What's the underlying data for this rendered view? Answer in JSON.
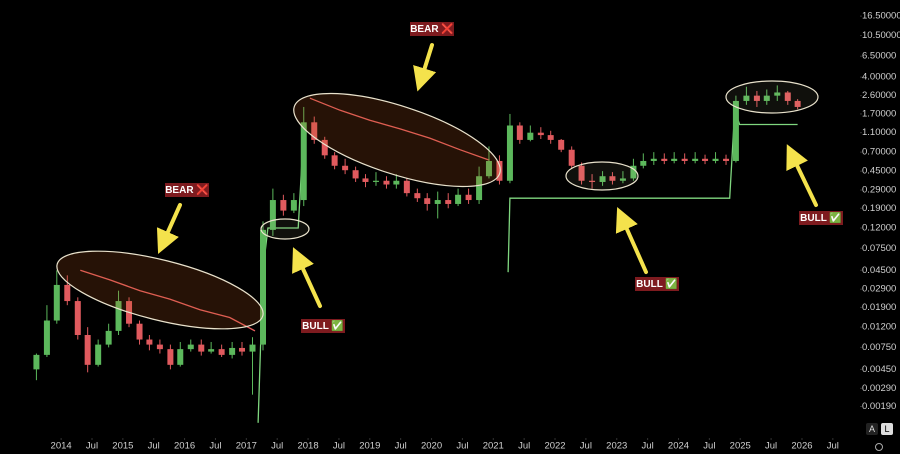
{
  "chart_data": {
    "type": "candlestick",
    "log_scale": true,
    "up_color": "#5cb85c",
    "down_color": "#e05a5e",
    "xlim": [
      2013.01,
      2026.94
    ],
    "ylim": [
      0.0011,
      24
    ],
    "xticks": [
      2014,
      {
        "value": 2014.5,
        "label": "Jul"
      },
      2015,
      {
        "value": 2015.5,
        "label": "Jul"
      },
      2016,
      {
        "value": 2016.5,
        "label": "Jul"
      },
      2017,
      {
        "value": 2017.5,
        "label": "Jul"
      },
      2018,
      {
        "value": 2018.5,
        "label": "Jul"
      },
      2019,
      {
        "value": 2019.5,
        "label": "Jul"
      },
      2020,
      {
        "value": 2020.5,
        "label": "Jul"
      },
      2021,
      {
        "value": 2021.5,
        "label": "Jul"
      },
      2022,
      {
        "value": 2022.5,
        "label": "Jul"
      },
      2023,
      {
        "value": 2023.5,
        "label": "Jul"
      },
      2024,
      {
        "value": 2024.5,
        "label": "Jul"
      },
      2025,
      {
        "value": 2025.5,
        "label": "Jul"
      },
      2026,
      {
        "value": 2026.5,
        "label": "Jul"
      }
    ],
    "yticks": [
      {
        "value": 16.5,
        "label": "16.50000"
      },
      {
        "value": 10.5,
        "label": "10.50000"
      },
      {
        "value": 6.5,
        "label": "6.50000"
      },
      {
        "value": 4,
        "label": "4.00000"
      },
      {
        "value": 2.6,
        "label": "2.60000"
      },
      {
        "value": 1.7,
        "label": "1.70000"
      },
      {
        "value": 1.1,
        "label": "1.10000"
      },
      {
        "value": 0.7,
        "label": "0.70000"
      },
      {
        "value": 0.45,
        "label": "0.45000"
      },
      {
        "value": 0.29,
        "label": "0.29000"
      },
      {
        "value": 0.19,
        "label": "0.19000"
      },
      {
        "value": 0.12,
        "label": "0.12000"
      },
      {
        "value": 0.075,
        "label": "0.07500"
      },
      {
        "value": 0.045,
        "label": "0.04500"
      },
      {
        "value": 0.029,
        "label": "0.02900"
      },
      {
        "value": 0.019,
        "label": "0.01900"
      },
      {
        "value": 0.012,
        "label": "0.01200"
      },
      {
        "value": 0.0075,
        "label": "0.00750"
      },
      {
        "value": 0.0045,
        "label": "0.00450"
      },
      {
        "value": 0.0029,
        "label": "0.00290"
      },
      {
        "value": 0.0019,
        "label": "0.00190"
      }
    ],
    "x": [
      2013.6,
      2013.77,
      2013.93,
      2014.1,
      2014.27,
      2014.43,
      2014.6,
      2014.77,
      2014.93,
      2015.1,
      2015.27,
      2015.43,
      2015.6,
      2015.77,
      2015.93,
      2016.1,
      2016.27,
      2016.43,
      2016.6,
      2016.77,
      2016.93,
      2017.1,
      2017.27,
      2017.43,
      2017.6,
      2017.77,
      2017.93,
      2018.1,
      2018.27,
      2018.43,
      2018.6,
      2018.77,
      2018.93,
      2019.1,
      2019.27,
      2019.43,
      2019.6,
      2019.77,
      2019.93,
      2020.1,
      2020.27,
      2020.43,
      2020.6,
      2020.77,
      2020.93,
      2021.1,
      2021.27,
      2021.43,
      2021.6,
      2021.77,
      2021.93,
      2022.1,
      2022.27,
      2022.43,
      2022.6,
      2022.77,
      2022.93,
      2023.1,
      2023.27,
      2023.43,
      2023.6,
      2023.77,
      2023.93,
      2024.1,
      2024.27,
      2024.43,
      2024.6,
      2024.77,
      2024.93,
      2025.1,
      2025.27,
      2025.43,
      2025.6,
      2025.77,
      2025.93
    ],
    "open": [
      0.0045,
      0.0063,
      0.014,
      0.032,
      0.022,
      0.01,
      0.005,
      0.008,
      0.011,
      0.022,
      0.013,
      0.009,
      0.008,
      0.0072,
      0.005,
      0.0072,
      0.008,
      0.0068,
      0.0072,
      0.0063,
      0.0074,
      0.0068,
      0.008,
      0.115,
      0.23,
      0.18,
      0.23,
      1.4,
      0.93,
      0.65,
      0.51,
      0.46,
      0.38,
      0.35,
      0.36,
      0.33,
      0.36,
      0.27,
      0.24,
      0.21,
      0.23,
      0.21,
      0.26,
      0.23,
      0.4,
      0.57,
      0.36,
      1.3,
      0.93,
      1.1,
      1.04,
      0.93,
      0.74,
      0.51,
      0.36,
      0.35,
      0.4,
      0.36,
      0.38,
      0.51,
      0.57,
      0.6,
      0.57,
      0.6,
      0.57,
      0.6,
      0.57,
      0.6,
      0.57,
      2.3,
      2.6,
      2.3,
      2.6,
      2.8,
      2.3
    ],
    "high": [
      0.0065,
      0.02,
      0.045,
      0.04,
      0.024,
      0.012,
      0.009,
      0.013,
      0.028,
      0.024,
      0.014,
      0.01,
      0.009,
      0.008,
      0.0085,
      0.009,
      0.009,
      0.0085,
      0.008,
      0.0085,
      0.0085,
      0.0095,
      0.14,
      0.3,
      0.26,
      0.27,
      2.0,
      1.6,
      1.0,
      0.7,
      0.6,
      0.5,
      0.42,
      0.44,
      0.4,
      0.42,
      0.38,
      0.3,
      0.27,
      0.28,
      0.27,
      0.3,
      0.3,
      0.5,
      0.8,
      0.65,
      1.7,
      1.4,
      1.3,
      1.25,
      1.15,
      0.95,
      0.8,
      0.55,
      0.42,
      0.45,
      0.44,
      0.45,
      0.6,
      0.68,
      0.7,
      0.68,
      0.7,
      0.68,
      0.7,
      0.66,
      0.7,
      0.66,
      2.6,
      3.2,
      2.9,
      3.0,
      3.3,
      2.9,
      2.4
    ],
    "low": [
      0.0035,
      0.006,
      0.013,
      0.02,
      0.009,
      0.0042,
      0.0048,
      0.0075,
      0.01,
      0.012,
      0.008,
      0.007,
      0.0065,
      0.0045,
      0.0048,
      0.0068,
      0.0062,
      0.0065,
      0.006,
      0.0058,
      0.0062,
      0.0025,
      0.007,
      0.1,
      0.16,
      0.17,
      0.2,
      0.85,
      0.6,
      0.47,
      0.42,
      0.35,
      0.31,
      0.32,
      0.3,
      0.3,
      0.25,
      0.22,
      0.18,
      0.15,
      0.19,
      0.2,
      0.21,
      0.21,
      0.38,
      0.33,
      0.34,
      0.85,
      0.9,
      0.95,
      0.85,
      0.7,
      0.48,
      0.33,
      0.3,
      0.32,
      0.33,
      0.34,
      0.36,
      0.48,
      0.52,
      0.53,
      0.54,
      0.53,
      0.54,
      0.53,
      0.54,
      0.52,
      0.55,
      2.1,
      2.0,
      2.1,
      2.3,
      2.1,
      1.9
    ],
    "close": [
      0.0063,
      0.014,
      0.032,
      0.022,
      0.01,
      0.005,
      0.008,
      0.011,
      0.022,
      0.013,
      0.009,
      0.008,
      0.0072,
      0.005,
      0.0072,
      0.008,
      0.0068,
      0.0072,
      0.0063,
      0.0074,
      0.0068,
      0.008,
      0.115,
      0.23,
      0.18,
      0.23,
      1.4,
      0.93,
      0.65,
      0.51,
      0.46,
      0.38,
      0.35,
      0.36,
      0.33,
      0.36,
      0.27,
      0.24,
      0.21,
      0.23,
      0.21,
      0.26,
      0.23,
      0.4,
      0.57,
      0.36,
      1.3,
      0.93,
      1.1,
      1.04,
      0.93,
      0.74,
      0.51,
      0.36,
      0.35,
      0.4,
      0.36,
      0.38,
      0.51,
      0.57,
      0.6,
      0.57,
      0.6,
      0.57,
      0.6,
      0.57,
      0.6,
      0.57,
      2.3,
      2.6,
      2.3,
      2.6,
      2.8,
      2.3,
      2.0
    ],
    "lines": [
      {
        "color": "#e8605f",
        "x": [
          2014.31,
          2014.79,
          2015.28,
          2015.76,
          2016.25,
          2016.73,
          2017.14
        ],
        "values": [
          0.045,
          0.036,
          0.028,
          0.023,
          0.018,
          0.015,
          0.011
        ]
      },
      {
        "color": "#e8605f",
        "x": [
          2018.03,
          2018.52,
          2019.0,
          2019.49,
          2019.97,
          2020.46,
          2020.94
        ],
        "values": [
          2.45,
          1.85,
          1.47,
          1.2,
          0.97,
          0.74,
          0.58
        ]
      },
      {
        "color": "#7fd67f",
        "x": [
          2017.19,
          2017.27,
          2017.35,
          2017.84,
          2017.92,
          2020.85,
          2021.24,
          2021.27,
          2024.83,
          2024.91,
          2024.99,
          2025.93
        ],
        "values": [
          0.0013,
          0.045,
          0.12,
          0.12,
          0.92,
          null,
          0.043,
          0.24,
          0.24,
          1.85,
          1.33,
          1.33
        ]
      }
    ],
    "annotations": [
      "BEAR ❌",
      "BEAR ❌",
      "BULL ✅",
      "BULL ✅",
      "BULL ✅"
    ]
  },
  "scale_buttons": [
    "A",
    "L"
  ]
}
